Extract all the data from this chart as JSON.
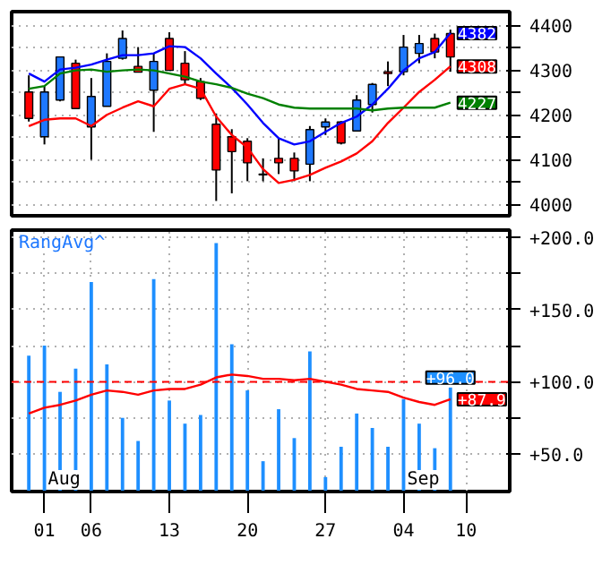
{
  "chart_data": [
    {
      "type": "candlestick",
      "categories": [
        null,
        null,
        null,
        null,
        null,
        null,
        null,
        null,
        null,
        null,
        null,
        null,
        null,
        null,
        null,
        null,
        null,
        null,
        null,
        null,
        null,
        null,
        null,
        null,
        null,
        null,
        null,
        null,
        null
      ],
      "ohlc": [
        [
          4251,
          4288,
          4185,
          4192
        ],
        [
          4151,
          4264,
          4134,
          4251
        ],
        [
          4233,
          4329,
          4230,
          4329
        ],
        [
          4315,
          4323,
          4214,
          4214
        ],
        [
          4173,
          4282,
          4100,
          4241
        ],
        [
          4219,
          4337,
          4219,
          4319
        ],
        [
          4326,
          4388,
          4323,
          4370
        ],
        [
          4308,
          4351,
          4295,
          4295
        ],
        [
          4255,
          4337,
          4162,
          4319
        ],
        [
          4370,
          4384,
          4299,
          4299
        ],
        [
          4315,
          4342,
          4268,
          4278
        ],
        [
          4274,
          4282,
          4233,
          4237
        ],
        [
          4179,
          4203,
          4008,
          4077
        ],
        [
          4151,
          4168,
          4025,
          4118
        ],
        [
          4141,
          4148,
          4052,
          4093
        ],
        [
          4068,
          4103,
          4052,
          4066
        ],
        [
          4103,
          4148,
          4068,
          4093
        ],
        [
          4103,
          4116,
          4052,
          4075
        ],
        [
          4090,
          4175,
          4052,
          4167
        ],
        [
          4173,
          4192,
          4155,
          4184
        ],
        [
          4184,
          4186,
          4134,
          4137
        ],
        [
          4164,
          4244,
          4164,
          4233
        ],
        [
          4223,
          4271,
          4205,
          4268
        ],
        [
          4296,
          4319,
          4264,
          4292
        ],
        [
          4296,
          4378,
          4288,
          4351
        ],
        [
          4337,
          4378,
          4315,
          4359
        ],
        [
          4370,
          4381,
          4326,
          4340
        ],
        [
          4381,
          4390,
          4296,
          4329
        ],
        null
      ],
      "colors": [
        "#ff0000",
        "#1e78ff",
        "#1e78ff",
        "#ff0000",
        "#1e78ff",
        "#1e78ff",
        "#1e78ff",
        "#ff0000",
        "#1e78ff",
        "#ff0000",
        "#ff0000",
        "#ff0000",
        "#ff0000",
        "#ff0000",
        "#ff0000",
        "#ff0000",
        "#ff0000",
        "#ff0000",
        "#1e78ff",
        "#1e78ff",
        "#ff0000",
        "#1e78ff",
        "#1e78ff",
        "#ff0000",
        "#1e78ff",
        "#1e78ff",
        "#ff0000",
        "#ff0000",
        null
      ],
      "series": [
        {
          "type": "line",
          "color": "#0000ff",
          "values": [
            4292,
            4274,
            4301,
            4305,
            4312,
            4323,
            4333,
            4333,
            4337,
            4353,
            4351,
            4326,
            4292,
            4260,
            4223,
            4182,
            4148,
            4134,
            4141,
            4162,
            4182,
            4196,
            4223,
            4258,
            4299,
            4326,
            4340,
            4382,
            null
          ],
          "value_labels": [
            null,
            null,
            null,
            null,
            null,
            null,
            null,
            null,
            null,
            null,
            null,
            null,
            null,
            null,
            null,
            null,
            null,
            null,
            null,
            null,
            null,
            null,
            null,
            null,
            null,
            null,
            null,
            "4382",
            null
          ]
        },
        {
          "type": "line",
          "color": "#ff0000",
          "values": [
            4175,
            4189,
            4192,
            4192,
            4175,
            4200,
            4216,
            4230,
            4219,
            4258,
            4268,
            4258,
            4196,
            4155,
            4127,
            4079,
            4048,
            4055,
            4066,
            4082,
            4096,
            4114,
            4141,
            4182,
            4216,
            4251,
            4278,
            4308,
            null
          ],
          "value_labels": [
            null,
            null,
            null,
            null,
            null,
            null,
            null,
            null,
            null,
            null,
            null,
            null,
            null,
            null,
            null,
            null,
            null,
            null,
            null,
            null,
            null,
            null,
            null,
            null,
            null,
            null,
            null,
            "4308",
            null
          ]
        },
        {
          "type": "line",
          "color": "#008000",
          "values": [
            4258,
            4264,
            4292,
            4299,
            4301,
            4296,
            4299,
            4301,
            4299,
            4292,
            4285,
            4274,
            4268,
            4260,
            4247,
            4237,
            4223,
            4216,
            4214,
            4214,
            4214,
            4214,
            4210,
            4214,
            4216,
            4216,
            4216,
            4227,
            null
          ],
          "value_labels": [
            null,
            null,
            null,
            null,
            null,
            null,
            null,
            null,
            null,
            null,
            null,
            null,
            null,
            null,
            null,
            null,
            null,
            null,
            null,
            null,
            null,
            null,
            null,
            null,
            null,
            null,
            null,
            "4227",
            null
          ]
        }
      ],
      "ylim": [
        3975,
        4430
      ],
      "yticks": [
        4000,
        {
          "value": 4050,
          "label": null
        },
        4100,
        {
          "value": 4150,
          "label": null
        },
        4200,
        {
          "value": 4250,
          "label": null
        },
        4300,
        {
          "value": 4350,
          "label": null
        },
        4400
      ],
      "grid": true,
      "tick_labels": "y"
    },
    {
      "type": "bar",
      "title": "RangAvg^",
      "categories": [
        null,
        "01",
        null,
        null,
        "06",
        null,
        null,
        null,
        null,
        "13",
        null,
        null,
        null,
        null,
        "20",
        null,
        null,
        null,
        null,
        "27",
        null,
        null,
        null,
        null,
        "04",
        null,
        null,
        null,
        "10"
      ],
      "series": [
        {
          "type": "bar",
          "color": "#1e8fff",
          "values": [
            118,
            125,
            93,
            109,
            169,
            112,
            75,
            59,
            171,
            87,
            71,
            77,
            196,
            126,
            94,
            45,
            81,
            61,
            121,
            34,
            55,
            78,
            68,
            55,
            88,
            71,
            54,
            96.0,
            null
          ],
          "value_labels": [
            null,
            null,
            null,
            null,
            null,
            null,
            null,
            null,
            null,
            null,
            null,
            null,
            null,
            null,
            null,
            null,
            null,
            null,
            null,
            null,
            null,
            null,
            null,
            null,
            null,
            null,
            null,
            "+96.0",
            null
          ]
        },
        {
          "type": "line",
          "color": "#ff0000",
          "values": [
            78,
            82,
            84,
            87,
            91,
            94,
            93,
            91,
            94,
            95,
            95,
            98,
            103,
            105,
            104,
            102,
            102,
            101,
            102,
            100,
            98,
            95,
            94,
            93,
            89,
            86,
            84,
            87.9,
            null
          ],
          "value_labels": [
            null,
            null,
            null,
            null,
            null,
            null,
            null,
            null,
            null,
            null,
            null,
            null,
            null,
            null,
            null,
            null,
            null,
            null,
            null,
            null,
            null,
            null,
            null,
            null,
            null,
            null,
            null,
            "+87.9",
            null
          ]
        }
      ],
      "ylim": [
        24,
        205
      ],
      "yticks": [
        {
          "value": 50,
          "label": "+50.0"
        },
        {
          "value": 75,
          "label": null
        },
        {
          "value": 100,
          "label": "+100.0"
        },
        {
          "value": 125,
          "label": null
        },
        {
          "value": 150,
          "label": "+150.0"
        },
        {
          "value": 175,
          "label": null
        },
        {
          "value": 200,
          "label": "+200.0"
        }
      ],
      "ref_lines": [
        {
          "axis": "y",
          "value": 100,
          "color": "#ff0000",
          "line_style": "dashed"
        }
      ],
      "annotations": [
        {
          "text": "Aug",
          "x": "01"
        },
        {
          "text": "Sep",
          "x": "04"
        }
      ],
      "grid": true
    }
  ]
}
